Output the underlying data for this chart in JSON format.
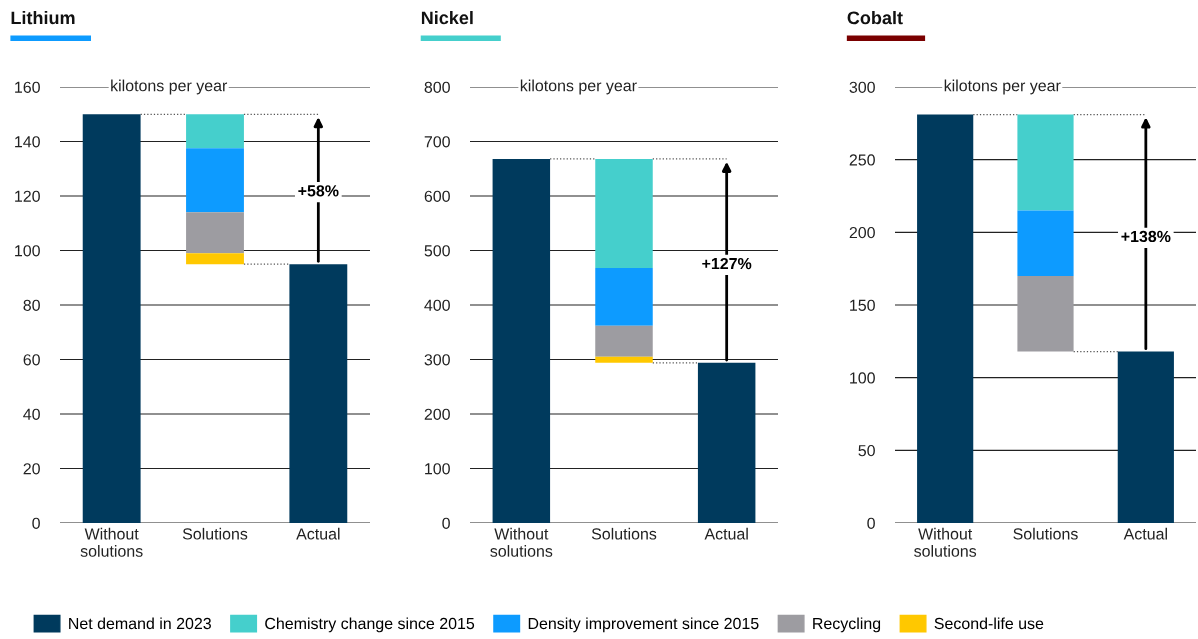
{
  "chart_data": [
    {
      "type": "bar",
      "title": "Lithium",
      "ylabel": "kilotons per year",
      "categories": [
        "Without\nsolutions",
        "Solutions",
        "Actual"
      ],
      "ylim": [
        0,
        160
      ],
      "yticks": [
        0,
        20,
        40,
        60,
        80,
        100,
        120,
        140,
        160
      ],
      "grid": "y",
      "legend": "bottom",
      "series": [
        {
          "name": "Net demand in 2023",
          "color": "#003a5d",
          "values": [
            150,
            null,
            95
          ]
        },
        {
          "name": "Chemistry change since 2015",
          "color": "#45cfcc",
          "values": [
            null,
            12.5,
            null
          ],
          "base": [
            null,
            137.5,
            null
          ]
        },
        {
          "name": "Density improvement since 2015",
          "color": "#0d9bff",
          "values": [
            null,
            23.5,
            null
          ],
          "base": [
            null,
            114,
            null
          ]
        },
        {
          "name": "Recycling",
          "color": "#9d9ca1",
          "values": [
            null,
            15,
            null
          ],
          "base": [
            null,
            99,
            null
          ]
        },
        {
          "name": "Second-life use",
          "color": "#ffc800",
          "values": [
            null,
            4,
            null
          ],
          "base": [
            null,
            95,
            null
          ]
        }
      ],
      "annotations": [
        "+58%"
      ]
    },
    {
      "type": "bar",
      "title": "Nickel",
      "ylabel": "kilotons per year",
      "categories": [
        "Without\nsolutions",
        "Solutions",
        "Actual"
      ],
      "ylim": [
        0,
        800
      ],
      "yticks": [
        0,
        100,
        200,
        300,
        400,
        500,
        600,
        700,
        800
      ],
      "grid": "y",
      "series": [
        {
          "color": "#003a5d",
          "values": [
            668,
            null,
            294
          ]
        },
        {
          "color": "#45cfcc",
          "values": [
            null,
            200,
            null
          ],
          "base": [
            null,
            468,
            null
          ]
        },
        {
          "color": "#0d9bff",
          "values": [
            null,
            106,
            null
          ],
          "base": [
            null,
            362,
            null
          ]
        },
        {
          "color": "#9d9ca1",
          "values": [
            null,
            57,
            null
          ],
          "base": [
            null,
            305,
            null
          ]
        },
        {
          "color": "#ffc800",
          "values": [
            null,
            11,
            null
          ],
          "base": [
            null,
            294,
            null
          ]
        }
      ],
      "annotations": [
        "+127%"
      ]
    },
    {
      "type": "bar",
      "title": "Cobalt",
      "ylabel": "kilotons per year",
      "categories": [
        "Without\nsolutions",
        "Solutions",
        "Actual"
      ],
      "ylim": [
        0,
        300
      ],
      "yticks": [
        0,
        50,
        100,
        150,
        200,
        250,
        300
      ],
      "grid": "y",
      "series": [
        {
          "color": "#003a5d",
          "values": [
            281,
            null,
            118
          ]
        },
        {
          "color": "#45cfcc",
          "values": [
            null,
            66,
            null
          ],
          "base": [
            null,
            215,
            null
          ]
        },
        {
          "color": "#0d9bff",
          "values": [
            null,
            45,
            null
          ],
          "base": [
            null,
            170,
            null
          ]
        },
        {
          "color": "#9d9ca1",
          "values": [
            null,
            52,
            null
          ],
          "base": [
            null,
            118,
            null
          ]
        }
      ],
      "annotations": [
        "+138%"
      ]
    }
  ]
}
